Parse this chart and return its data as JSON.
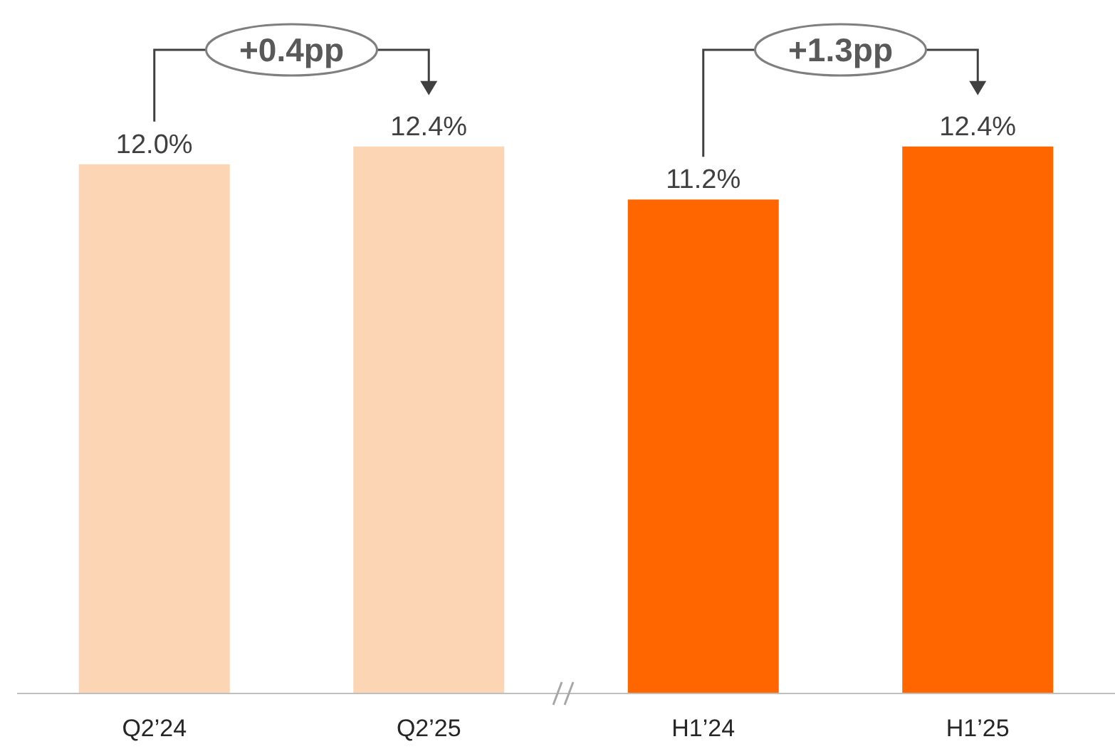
{
  "chart_data": {
    "type": "bar",
    "categories": [
      "Q2’24",
      "Q2’25",
      "H1’24",
      "H1’25"
    ],
    "values": [
      12.0,
      12.4,
      11.2,
      12.4
    ],
    "value_labels": [
      "12.0%",
      "12.4%",
      "11.2%",
      "12.4%"
    ],
    "colors": [
      "#fcd5b5",
      "#fcd5b5",
      "#ff6600",
      "#ff6600"
    ],
    "annotations": [
      "+0.4pp",
      "+1.3pp"
    ]
  }
}
